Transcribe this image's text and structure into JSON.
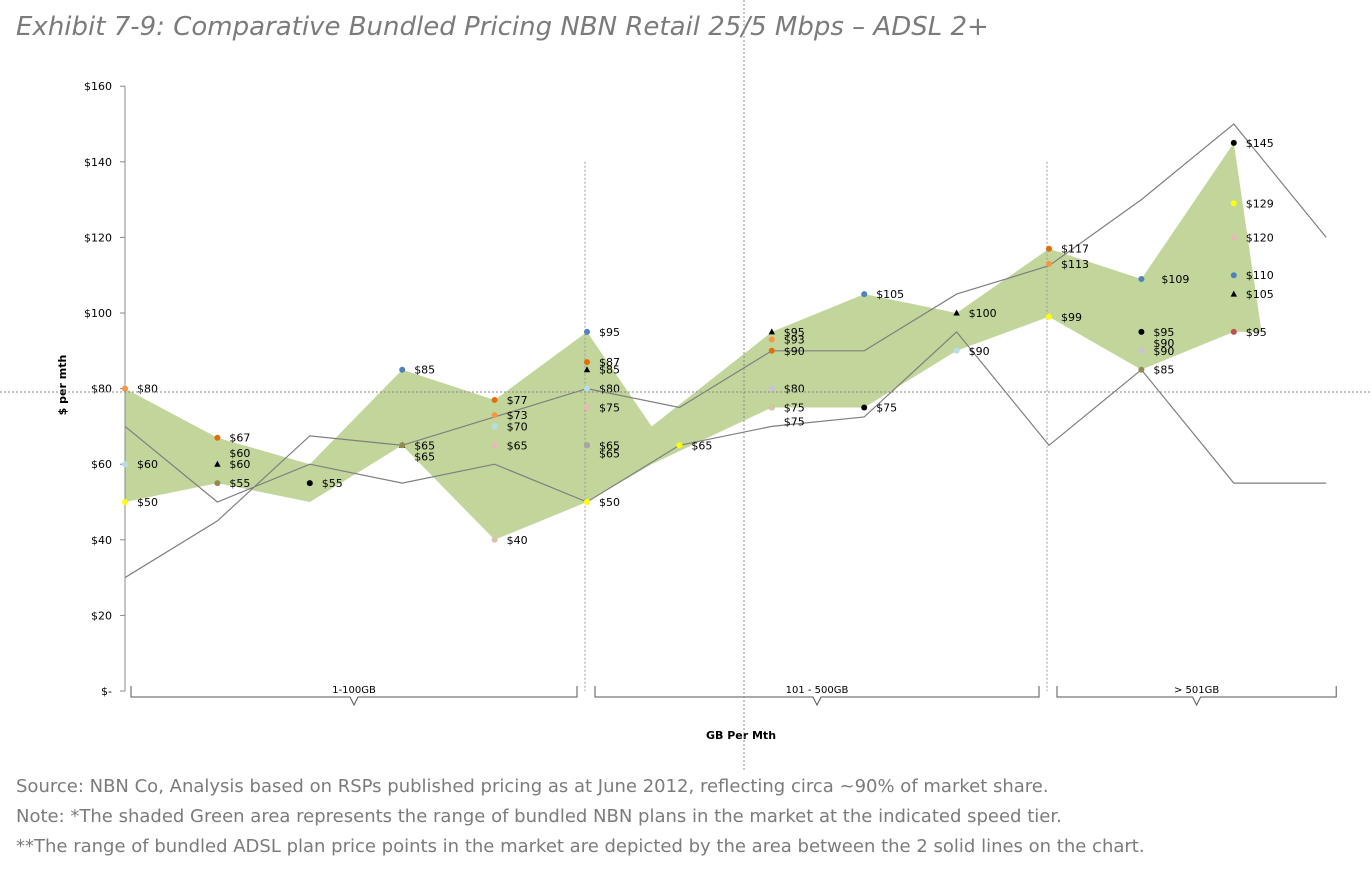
{
  "title": "Exhibit 7-9: Comparative Bundled Pricing NBN Retail 25/5 Mbps – ADSL 2+",
  "notes": {
    "source": "Source: NBN Co, Analysis based on RSPs published pricing as at June 2012, reflecting circa ~90% of market share.",
    "note": "Note: *The shaded Green area represents the range of bundled NBN plans in the market at the indicated speed tier.",
    "note2": "**The range of bundled ADSL plan price points in the market are depicted by the area between the 2 solid lines on the chart."
  },
  "chart_data": {
    "type": "scatter",
    "title": "Exhibit 7-9: Comparative Bundled Pricing NBN Retail 25/5 Mbps – ADSL 2+",
    "xlabel": "GB Per Mth",
    "ylabel": "$ per mth",
    "ylim": [
      0,
      160
    ],
    "ytick_values": [
      0,
      20,
      40,
      60,
      80,
      100,
      120,
      140,
      160
    ],
    "ytick_labels": [
      "$-",
      "$20",
      "$40",
      "$60",
      "$80",
      "$100",
      "$120",
      "$140",
      "$160"
    ],
    "xlim": [
      0,
      13
    ],
    "tier_dividers": [
      5,
      10
    ],
    "tiers": [
      {
        "label": "1-100GB",
        "from": 0,
        "to": 5
      },
      {
        "label": "101 - 500GB",
        "from": 5,
        "to": 10
      },
      {
        "label": "> 501GB",
        "from": 10,
        "to": 13
      }
    ],
    "colors": {
      "nbn_area": "#c2d69b",
      "adsl_line": "#7f7f7f",
      "blue": "#4f81bd",
      "darkorange": "#e46c0a",
      "orange": "#f79646",
      "lightblue": "#b7dee8",
      "pink": "#e6b9b8",
      "yellow": "#ffff00",
      "olive": "#948a54",
      "black": "#000000",
      "tan": "#d9c3a5",
      "lavender": "#ccc0da",
      "red": "#c0504d",
      "grey": "#a6a6a6"
    },
    "nbn_range": {
      "name": "NBN bundled plan range",
      "x": [
        0,
        1,
        2,
        3,
        4,
        5,
        5.7,
        7,
        8,
        9,
        10,
        11,
        12,
        12.3
      ],
      "upper": [
        80,
        67,
        60,
        85,
        77,
        95,
        70,
        95,
        105,
        100,
        117,
        109,
        145,
        95
      ],
      "lower": [
        50,
        55,
        50,
        65,
        40,
        50,
        60,
        75,
        75,
        90,
        99,
        85,
        95,
        95
      ]
    },
    "adsl_lines": [
      {
        "name": "ADSL range line 1",
        "x": [
          0,
          1,
          2,
          3,
          4,
          5,
          6,
          7,
          8,
          9,
          10,
          11,
          12,
          13
        ],
        "y": [
          70,
          50,
          60,
          55,
          60,
          50,
          65,
          70,
          72.5,
          95,
          65,
          85,
          55,
          55
        ]
      },
      {
        "name": "ADSL range line 2",
        "x": [
          0,
          1,
          2,
          3,
          4,
          5,
          6,
          7,
          8,
          9,
          10,
          11,
          12,
          13
        ],
        "y": [
          30,
          45,
          67.5,
          65,
          72.5,
          80,
          75,
          90,
          90,
          105,
          112.5,
          130,
          150,
          120
        ]
      }
    ],
    "points": [
      {
        "x": 0,
        "y": 80,
        "label": "$80",
        "color": "orange",
        "shape": "circle"
      },
      {
        "x": 0,
        "y": 60,
        "label": "$60",
        "color": "lightblue",
        "shape": "circle"
      },
      {
        "x": 0,
        "y": 50,
        "label": "$50",
        "color": "yellow",
        "shape": "circle"
      },
      {
        "x": 1,
        "y": 67,
        "label": "$67",
        "color": "darkorange",
        "shape": "circle"
      },
      {
        "x": 1,
        "y": 60,
        "label": "$60",
        "color": "lavender",
        "shape": "circle"
      },
      {
        "x": 1,
        "y": 60,
        "label": "$60",
        "color": "black",
        "shape": "triangle",
        "dy": -11
      },
      {
        "x": 1,
        "y": 55,
        "label": "$55",
        "color": "olive",
        "shape": "circle"
      },
      {
        "x": 2,
        "y": 55,
        "label": "$55",
        "color": "black",
        "shape": "circle"
      },
      {
        "x": 3,
        "y": 85,
        "label": "$85",
        "color": "blue",
        "shape": "circle"
      },
      {
        "x": 3,
        "y": 65,
        "label": "$65",
        "color": "black",
        "shape": "triangle"
      },
      {
        "x": 3,
        "y": 65,
        "label": "$65",
        "color": "olive",
        "shape": "circle",
        "dy": 11
      },
      {
        "x": 4,
        "y": 77,
        "label": "$77",
        "color": "darkorange",
        "shape": "circle"
      },
      {
        "x": 4,
        "y": 73,
        "label": "$73",
        "color": "orange",
        "shape": "circle"
      },
      {
        "x": 4,
        "y": 70,
        "label": "$70",
        "color": "lightblue",
        "shape": "circle"
      },
      {
        "x": 4,
        "y": 65,
        "label": "$65",
        "color": "pink",
        "shape": "circle"
      },
      {
        "x": 4,
        "y": 40,
        "label": "$40",
        "color": "tan",
        "shape": "circle"
      },
      {
        "x": 5,
        "y": 95,
        "label": "$95",
        "color": "blue",
        "shape": "circle"
      },
      {
        "x": 5,
        "y": 87,
        "label": "$87",
        "color": "darkorange",
        "shape": "circle"
      },
      {
        "x": 5,
        "y": 85,
        "label": "$85",
        "color": "black",
        "shape": "triangle"
      },
      {
        "x": 5,
        "y": 80,
        "label": "$80",
        "color": "lightblue",
        "shape": "circle"
      },
      {
        "x": 5,
        "y": 75,
        "label": "$75",
        "color": "pink",
        "shape": "circle"
      },
      {
        "x": 5,
        "y": 65,
        "label": "$65",
        "color": "olive",
        "shape": "circle"
      },
      {
        "x": 5,
        "y": 65,
        "label": "$65",
        "color": "grey",
        "shape": "circle",
        "dy": 8
      },
      {
        "x": 5,
        "y": 50,
        "label": "$50",
        "color": "yellow",
        "shape": "circle"
      },
      {
        "x": 6,
        "y": 65,
        "label": "$65",
        "color": "yellow",
        "shape": "circle"
      },
      {
        "x": 7,
        "y": 95,
        "label": "$95",
        "color": "black",
        "shape": "triangle"
      },
      {
        "x": 7,
        "y": 93,
        "label": "$93",
        "color": "orange",
        "shape": "circle"
      },
      {
        "x": 7,
        "y": 90,
        "label": "$90",
        "color": "darkorange",
        "shape": "circle"
      },
      {
        "x": 7,
        "y": 80,
        "label": "$80",
        "color": "lavender",
        "shape": "circle"
      },
      {
        "x": 7,
        "y": 75,
        "label": "$75",
        "color": "olive",
        "shape": "circle"
      },
      {
        "x": 7,
        "y": 75,
        "label": "$75",
        "color": "tan",
        "shape": "circle",
        "dy": 14
      },
      {
        "x": 8,
        "y": 105,
        "label": "$105",
        "color": "blue",
        "shape": "circle"
      },
      {
        "x": 8,
        "y": 75,
        "label": "$75",
        "color": "black",
        "shape": "circle"
      },
      {
        "x": 9,
        "y": 100,
        "label": "$100",
        "color": "black",
        "shape": "triangle"
      },
      {
        "x": 9,
        "y": 90,
        "label": "$90",
        "color": "lightblue",
        "shape": "circle"
      },
      {
        "x": 10,
        "y": 117,
        "label": "$117",
        "color": "darkorange",
        "shape": "circle"
      },
      {
        "x": 10,
        "y": 113,
        "label": "$113",
        "color": "orange",
        "shape": "circle"
      },
      {
        "x": 10,
        "y": 99,
        "label": "$99",
        "color": "yellow",
        "shape": "circle"
      },
      {
        "x": 11,
        "y": 109,
        "label": "$109",
        "color": "blue",
        "shape": "circle",
        "dlx": 8
      },
      {
        "x": 11,
        "y": 95,
        "label": "$95",
        "color": "black",
        "shape": "circle"
      },
      {
        "x": 11,
        "y": 90,
        "label": "$90",
        "color": "tan",
        "shape": "circle",
        "dy": -8
      },
      {
        "x": 11,
        "y": 90,
        "label": "$90",
        "color": "lavender",
        "shape": "circle"
      },
      {
        "x": 11,
        "y": 85,
        "label": "$85",
        "color": "olive",
        "shape": "circle"
      },
      {
        "x": 12,
        "y": 145,
        "label": "$145",
        "color": "black",
        "shape": "circle"
      },
      {
        "x": 12,
        "y": 129,
        "label": "$129",
        "color": "yellow",
        "shape": "circle"
      },
      {
        "x": 12,
        "y": 120,
        "label": "$120",
        "color": "pink",
        "shape": "circle"
      },
      {
        "x": 12,
        "y": 110,
        "label": "$110",
        "color": "blue",
        "shape": "circle"
      },
      {
        "x": 12,
        "y": 105,
        "label": "$105",
        "color": "black",
        "shape": "triangle"
      },
      {
        "x": 12,
        "y": 95,
        "label": "$95",
        "color": "red",
        "shape": "circle"
      }
    ]
  }
}
